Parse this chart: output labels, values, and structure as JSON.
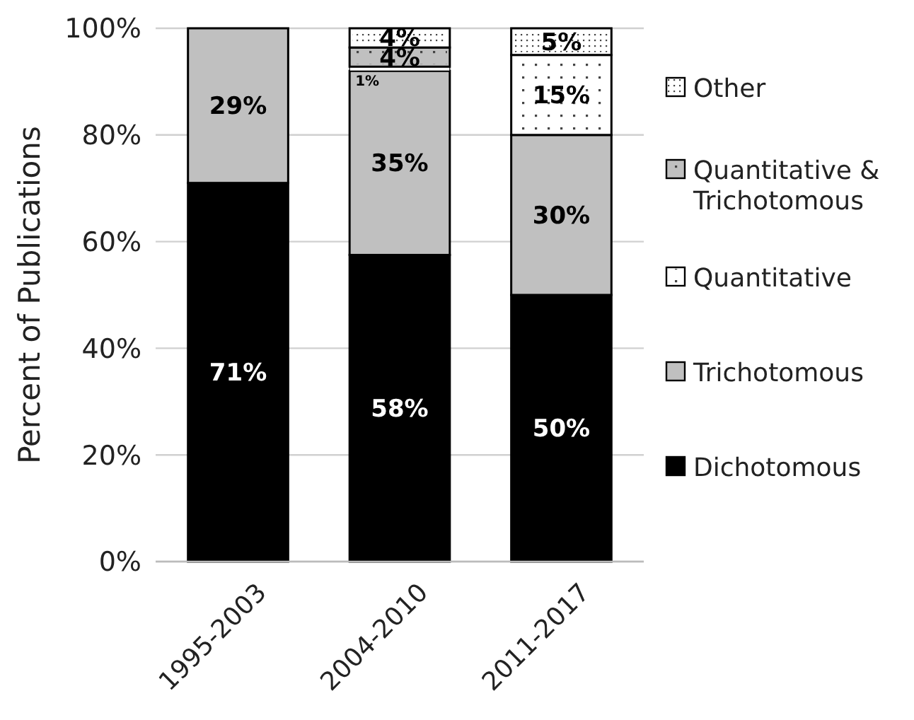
{
  "chart_data": {
    "type": "bar",
    "stacked": true,
    "ylabel": "Percent of Publications",
    "categories": [
      "1995-2003",
      "2004-2010",
      "2011-2017"
    ],
    "series": [
      {
        "name": "Dichotomous",
        "color": "#000000",
        "values": [
          71,
          57.5,
          50
        ],
        "value_labels": [
          "71%",
          "58%",
          "50%"
        ]
      },
      {
        "name": "Trichotomous",
        "color": "#c0c0c0",
        "values": [
          29,
          34.5,
          30
        ],
        "value_labels": [
          "29%",
          "35%",
          "30%"
        ]
      },
      {
        "name": "Quantitative",
        "color": "#ffffff",
        "values": [
          null,
          0.8,
          15
        ],
        "value_labels": [
          null,
          "1%",
          "15%"
        ]
      },
      {
        "name": "Quantitative & Trichotomous",
        "color": "#c0c0c0",
        "values": [
          null,
          3.6,
          null
        ],
        "value_labels": [
          null,
          "4%",
          null
        ]
      },
      {
        "name": "Other",
        "color": "#ffffff",
        "values": [
          null,
          3.6,
          5
        ],
        "value_labels": [
          null,
          "4%",
          "5%"
        ]
      }
    ],
    "ylim": [
      0,
      100
    ],
    "yticks": [
      {
        "value": 0,
        "label": "0%"
      },
      {
        "value": 20,
        "label": "20%"
      },
      {
        "value": 40,
        "label": "40%"
      },
      {
        "value": 60,
        "label": "60%"
      },
      {
        "value": 80,
        "label": "80%"
      },
      {
        "value": 100,
        "label": "100%"
      }
    ],
    "grid": "y",
    "legend": "right"
  }
}
